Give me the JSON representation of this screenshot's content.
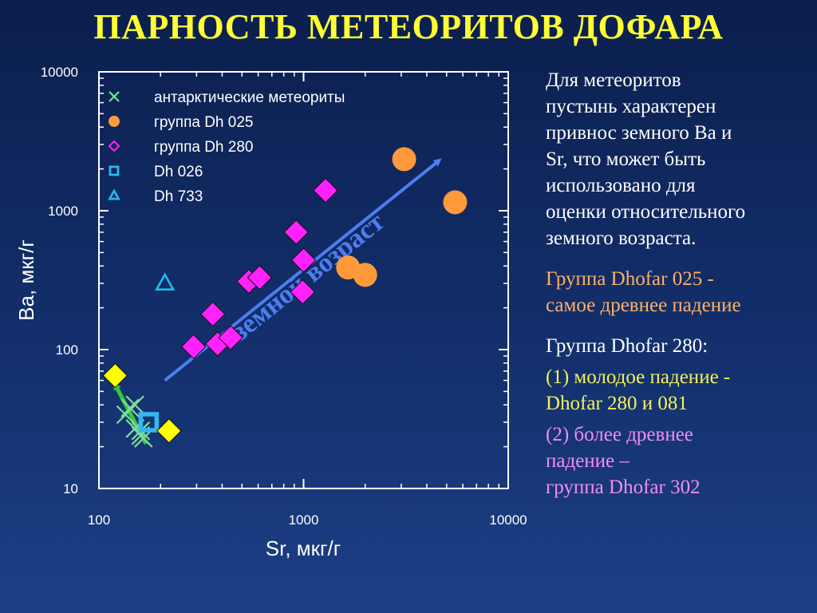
{
  "slide": {
    "title": "ПАРНОСТЬ МЕТЕОРИТОВ ДОФАРА",
    "text_blocks": [
      {
        "color": "#ffffff",
        "lines": [
          "Для метеоритов",
          "пустынь характерен",
          "привнос земного Ba и",
          "Sr, что может быть",
          "использовано для",
          "оценки относительного",
          "земного возраста."
        ]
      },
      {
        "color": "#ffb066",
        "lines": [
          "Группа Dhofar 025 -",
          "самое древнее падение"
        ]
      },
      {
        "color": "#ffffff",
        "lines": [
          "Группа Dhofar 280:"
        ]
      },
      {
        "color": "#f2f25a",
        "lines": [
          "(1) молодое падение -",
          "Dhofar 280 и 081"
        ]
      },
      {
        "color": "#f08ef0",
        "lines": [
          "(2) более древнее",
          "падение –",
          "группа Dhofar 302"
        ]
      }
    ]
  },
  "chart_data": {
    "type": "scatter",
    "xlabel": "Sr, мкг/г",
    "ylabel": "Ba, мкг/г",
    "xscale": "log",
    "yscale": "log",
    "xlim": [
      100,
      10000
    ],
    "ylim": [
      10,
      10000
    ],
    "x_ticks": [
      100,
      1000,
      10000
    ],
    "x_tick_labels": [
      "100",
      "1000",
      "10000"
    ],
    "y_ticks": [
      10,
      100,
      1000,
      10000
    ],
    "y_tick_labels": [
      "10",
      "100",
      "1000",
      "10000"
    ],
    "grid": false,
    "legend_position": "top-left",
    "series": [
      {
        "name": "антарктические метеориты",
        "marker": "x",
        "legend_color": "#66ee88",
        "color": "#7fdc9a",
        "points": [
          [
            135,
            34
          ],
          [
            142,
            38
          ],
          [
            150,
            40
          ],
          [
            150,
            27
          ],
          [
            160,
            26
          ],
          [
            165,
            23
          ],
          [
            160,
            24
          ]
        ]
      },
      {
        "name": "группа Dh 025",
        "marker": "circle",
        "color": "#ff9a3a",
        "points": [
          [
            3100,
            2350
          ],
          [
            5500,
            1150
          ],
          [
            1650,
            390
          ],
          [
            2000,
            345
          ]
        ]
      },
      {
        "name": "группа Dh 280",
        "marker": "diamond",
        "color": "#ff22ff",
        "points": [
          [
            1280,
            1400
          ],
          [
            920,
            700
          ],
          [
            1000,
            440
          ],
          [
            540,
            310
          ],
          [
            610,
            330
          ],
          [
            990,
            260
          ],
          [
            360,
            180
          ],
          [
            290,
            105
          ],
          [
            380,
            110
          ],
          [
            440,
            122
          ]
        ]
      },
      {
        "name": "Dh 026",
        "marker": "square",
        "color": "#33b8ee",
        "points": [
          [
            175,
            30
          ]
        ]
      },
      {
        "name": "Dh 733",
        "marker": "triangle",
        "color": "#22bbee",
        "points": [
          [
            210,
            300
          ]
        ]
      },
      {
        "marker": "diamond",
        "color": "#ffff00",
        "points": [
          [
            120,
            65
          ],
          [
            220,
            26
          ]
        ]
      }
    ],
    "annotations": [
      {
        "text": "земной возраст",
        "color": "#4d7df0",
        "arrow_from": [
          210,
          60
        ],
        "arrow_to": [
          4600,
          2300
        ]
      },
      {
        "color": "#33cc33",
        "arrow_from": [
          170,
          21
        ],
        "arrow_to": [
          120,
          56
        ]
      }
    ]
  }
}
